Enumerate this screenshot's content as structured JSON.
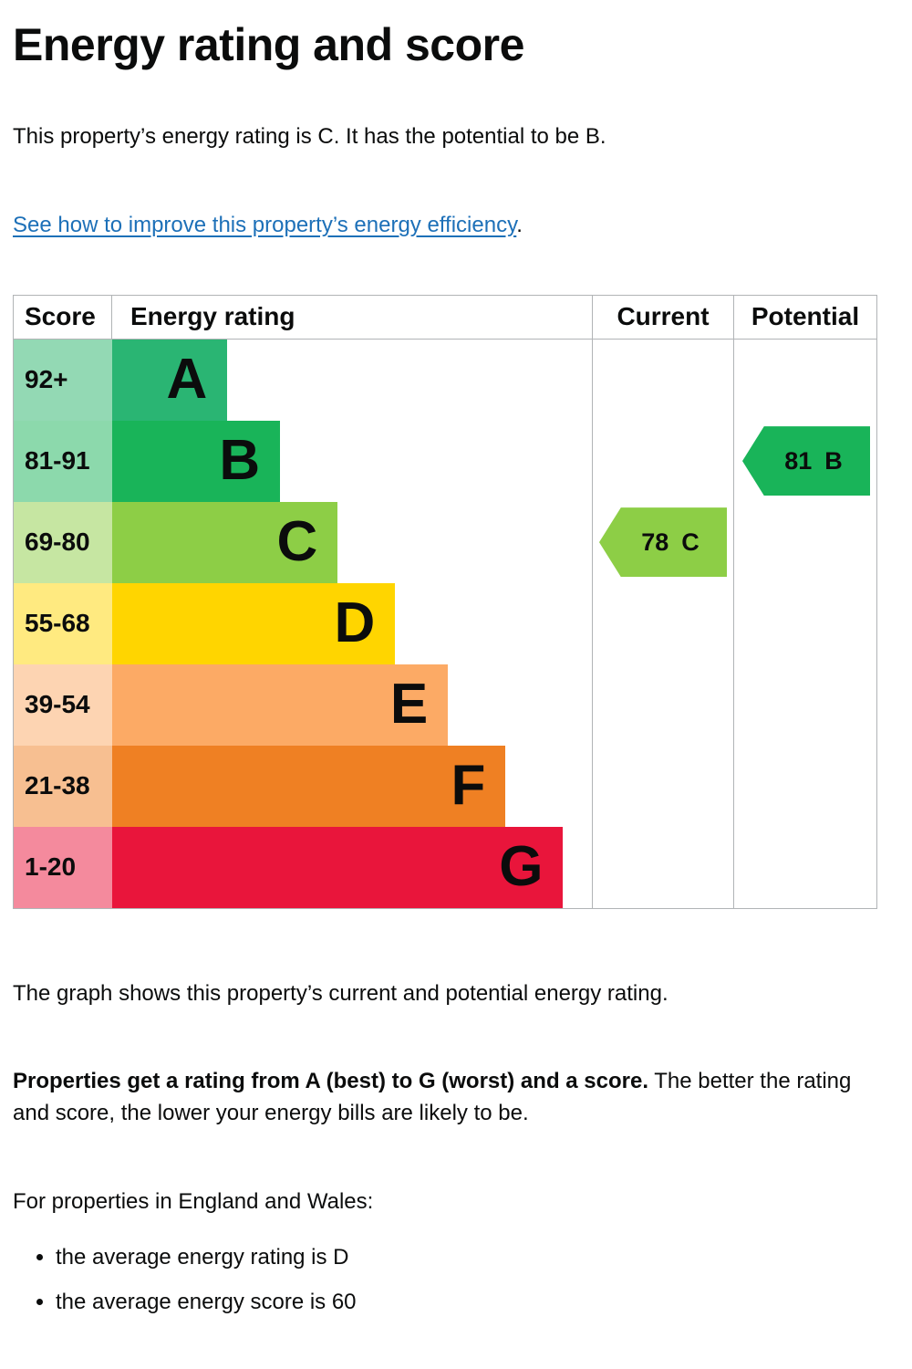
{
  "page": {
    "title": "Energy rating and score",
    "intro": "This property’s energy rating is C. It has the potential to be B.",
    "link_text": "See how to improve this property’s energy efficiency",
    "link_suffix": ".",
    "caption": "The graph shows this property’s current and potential energy rating.",
    "explain_bold": "Properties get a rating from A (best) to G (worst) and a score.",
    "explain_rest": " The better the rating and score, the lower your energy bills are likely to be.",
    "region_heading": "For properties in England and Wales:",
    "bullets": [
      "the average energy rating is D",
      "the average energy score is 60"
    ]
  },
  "chart_data": {
    "type": "bar",
    "title": "Energy rating and score",
    "headers": {
      "score": "Score",
      "rating": "Energy rating",
      "current": "Current",
      "potential": "Potential"
    },
    "bands": [
      {
        "score": "92+",
        "letter": "A",
        "color": "#2ab573",
        "tint": "#93d9b4",
        "width_pct": 24
      },
      {
        "score": "81-91",
        "letter": "B",
        "color": "#19b459",
        "tint": "#8cd9ac",
        "width_pct": 35
      },
      {
        "score": "69-80",
        "letter": "C",
        "color": "#8dce46",
        "tint": "#c6e6a2",
        "width_pct": 47
      },
      {
        "score": "55-68",
        "letter": "D",
        "color": "#ffd500",
        "tint": "#ffea80",
        "width_pct": 59
      },
      {
        "score": "39-54",
        "letter": "E",
        "color": "#fcaa65",
        "tint": "#fdd4b2",
        "width_pct": 70
      },
      {
        "score": "21-38",
        "letter": "F",
        "color": "#ef8023",
        "tint": "#f7bf91",
        "width_pct": 82
      },
      {
        "score": "1-20",
        "letter": "G",
        "color": "#e9153b",
        "tint": "#f48a9d",
        "width_pct": 94
      }
    ],
    "current": {
      "value": "78",
      "letter": "C",
      "band_index": 2,
      "color": "#8dce46"
    },
    "potential": {
      "value": "81",
      "letter": "B",
      "band_index": 1,
      "color": "#19b459"
    },
    "legend_position": "columns-right",
    "grid": false
  }
}
